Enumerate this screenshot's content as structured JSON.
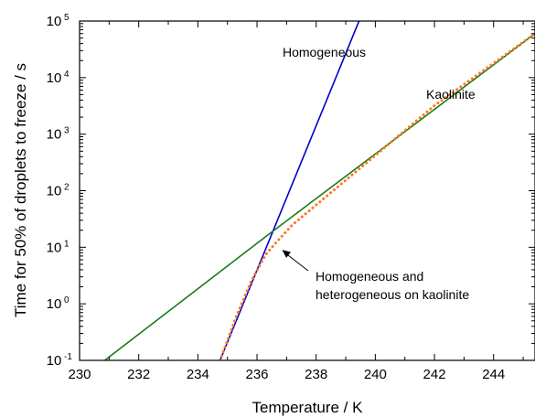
{
  "chart_data": {
    "type": "line",
    "xlabel": "Temperature / K",
    "ylabel": "Time for 50% of droplets to freeze / s",
    "xlim": [
      230,
      245.4
    ],
    "ylim_log10": [
      -1,
      5
    ],
    "yscale": "log",
    "grid": false,
    "x_ticks": [
      "230",
      "232",
      "234",
      "236",
      "238",
      "240",
      "242",
      "244"
    ],
    "y_ticks": [
      {
        "base": "10",
        "exp": "-1"
      },
      {
        "base": "10",
        "exp": "0"
      },
      {
        "base": "10",
        "exp": "1"
      },
      {
        "base": "10",
        "exp": "2"
      },
      {
        "base": "10",
        "exp": "3"
      },
      {
        "base": "10",
        "exp": "4"
      },
      {
        "base": "10",
        "exp": "5"
      }
    ],
    "series": [
      {
        "name": "Homogeneous",
        "color": "#0000cc",
        "style": "solid",
        "points": [
          [
            234.75,
            0.1
          ],
          [
            239.45,
            100000
          ]
        ]
      },
      {
        "name": "Kaolinite",
        "color": "#1a7a1a",
        "style": "solid",
        "points": [
          [
            230.85,
            0.1
          ],
          [
            236.45,
            17.8
          ],
          [
            245.4,
            60000
          ]
        ]
      },
      {
        "name": "Homogeneous and heterogeneous on kaolinite",
        "color": "#ff7722",
        "style": "dotted",
        "points": [
          [
            234.75,
            0.1
          ],
          [
            235.3,
            0.6
          ],
          [
            235.8,
            2.5
          ],
          [
            236.3,
            7.5
          ],
          [
            236.7,
            13
          ],
          [
            237.2,
            25
          ],
          [
            238,
            56
          ],
          [
            240,
            420
          ],
          [
            242,
            3200
          ],
          [
            245.4,
            60000
          ]
        ]
      }
    ],
    "annotations": [
      {
        "text": "Homogeneous",
        "series": "Homogeneous"
      },
      {
        "text": "Kaolinite",
        "series": "Kaolinite"
      },
      {
        "lines": [
          "Homogeneous and",
          "heterogeneous on kaolinite"
        ],
        "series": "Homogeneous and heterogeneous on kaolinite",
        "arrow": true
      }
    ]
  }
}
